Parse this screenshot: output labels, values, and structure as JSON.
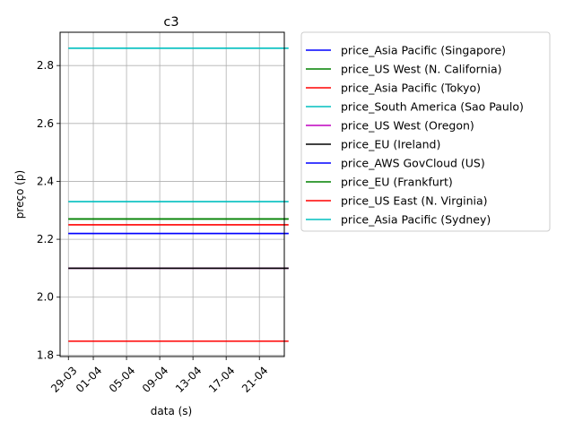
{
  "chart_data": {
    "type": "line",
    "title": "c3",
    "xlabel": "data (s)",
    "ylabel": "preço (p)",
    "x_range": [
      "2015-03-28",
      "2015-04-24"
    ],
    "x_start": "2015-03-29",
    "x_end": "2015-04-23",
    "xticks": [
      {
        "date": "2015-03-29",
        "label": "29-03"
      },
      {
        "date": "2015-04-01",
        "label": "01-04"
      },
      {
        "date": "2015-04-05",
        "label": "05-04"
      },
      {
        "date": "2015-04-09",
        "label": "09-04"
      },
      {
        "date": "2015-04-13",
        "label": "13-04"
      },
      {
        "date": "2015-04-17",
        "label": "17-04"
      },
      {
        "date": "2015-04-21",
        "label": "21-04"
      }
    ],
    "ylim": [
      1.795,
      2.915
    ],
    "yticks": [
      1.8,
      2.0,
      2.2,
      2.4,
      2.6,
      2.8
    ],
    "ytick_labels": [
      "1.8",
      "2.0",
      "2.2",
      "2.4",
      "2.6",
      "2.8"
    ],
    "grid": true,
    "legend_position": "outside-right",
    "series": [
      {
        "name": "price_Asia Pacific (Singapore)",
        "color": "#0000ff",
        "value": 2.22
      },
      {
        "name": "price_US West (N. California)",
        "color": "#008000",
        "value": 2.27
      },
      {
        "name": "price_Asia Pacific (Tokyo)",
        "color": "#ff0000",
        "value": 2.25
      },
      {
        "name": "price_South America (Sao Paulo)",
        "color": "#00bfbf",
        "value": 2.86
      },
      {
        "name": "price_US West (Oregon)",
        "color": "#bf00bf",
        "value": 2.1
      },
      {
        "name": "price_EU (Ireland)",
        "color": "#000000",
        "value": 2.1
      },
      {
        "name": "price_AWS GovCloud (US)",
        "color": "#0000ff",
        "value": 2.22
      },
      {
        "name": "price_EU (Frankfurt)",
        "color": "#008000",
        "value": 2.27
      },
      {
        "name": "price_US East (N. Virginia)",
        "color": "#ff0000",
        "value": 1.848
      },
      {
        "name": "price_Asia Pacific (Sydney)",
        "color": "#00bfbf",
        "value": 2.33
      }
    ]
  }
}
